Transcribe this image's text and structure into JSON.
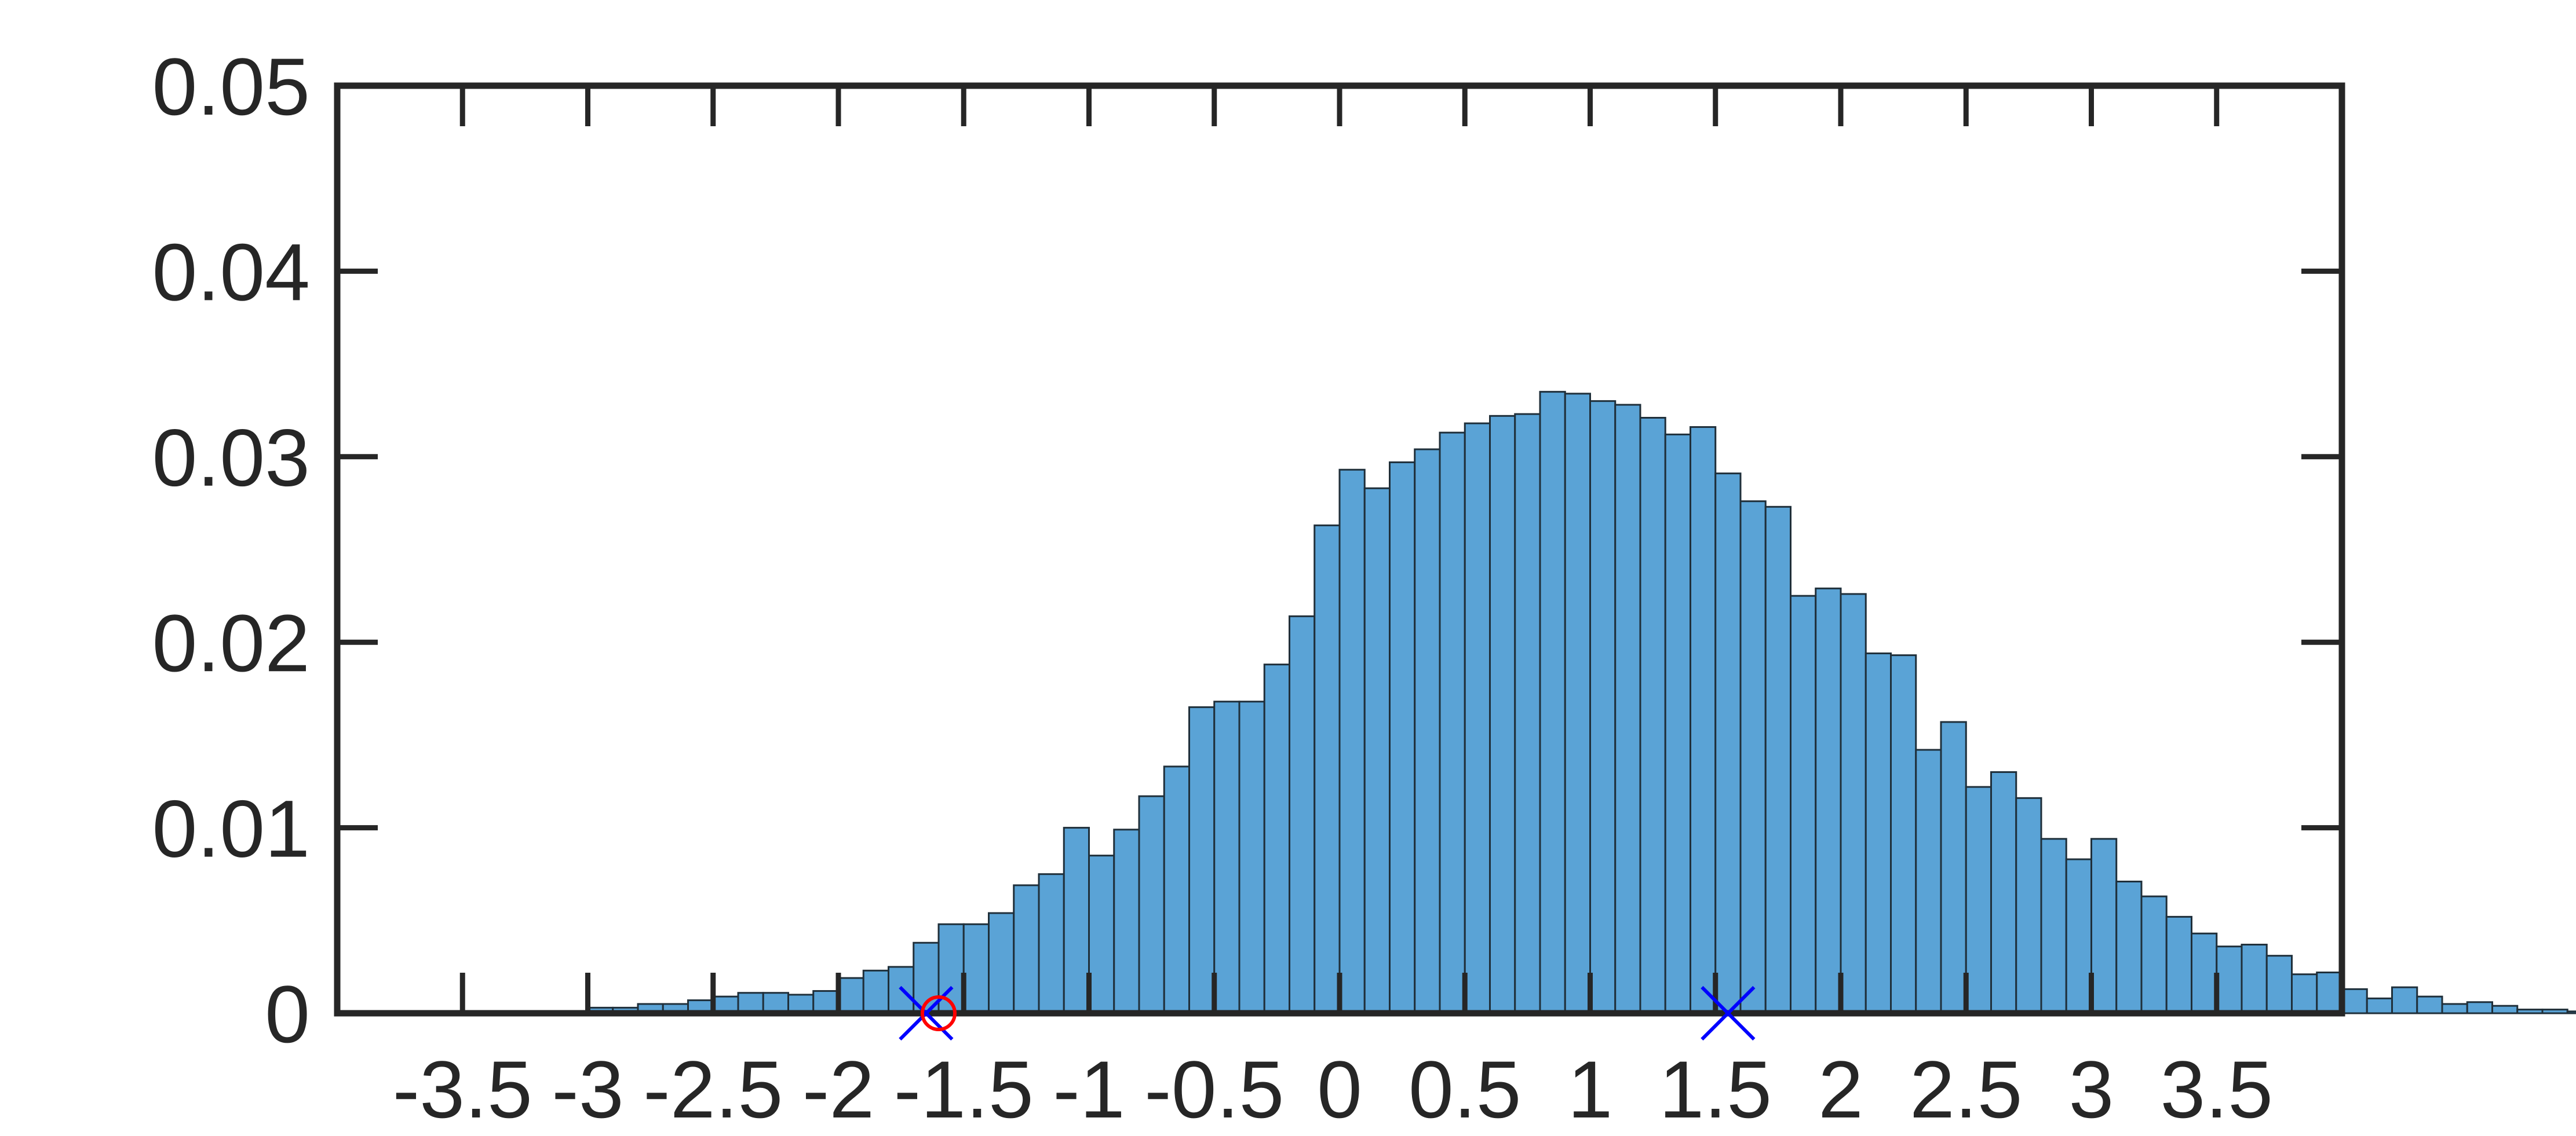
{
  "chart_data": {
    "type": "bar",
    "title": "",
    "xlabel": "",
    "ylabel": "",
    "xlim": [
      -4,
      4
    ],
    "ylim": [
      0,
      0.05
    ],
    "grid": false,
    "bin_start": -3.5,
    "bin_width": 0.1,
    "values": [
      0.0001,
      0.0001,
      0.0001,
      0.0001,
      0.0001,
      0.0003,
      0.0003,
      0.0005,
      0.0005,
      0.0007,
      0.0009,
      0.0011,
      0.0011,
      0.001,
      0.0012,
      0.0019,
      0.0023,
      0.0025,
      0.0038,
      0.0048,
      0.0048,
      0.0054,
      0.0069,
      0.0075,
      0.01,
      0.0085,
      0.0099,
      0.0117,
      0.0133,
      0.0165,
      0.0168,
      0.0168,
      0.0188,
      0.0214,
      0.0263,
      0.0293,
      0.0283,
      0.0297,
      0.0304,
      0.0313,
      0.0318,
      0.0322,
      0.0323,
      0.0335,
      0.0334,
      0.033,
      0.0328,
      0.0321,
      0.0312,
      0.0316,
      0.0291,
      0.0276,
      0.0273,
      0.0225,
      0.0229,
      0.0226,
      0.0194,
      0.0193,
      0.0142,
      0.0157,
      0.0122,
      0.013,
      0.0116,
      0.0094,
      0.0083,
      0.0094,
      0.0071,
      0.0063,
      0.0052,
      0.0043,
      0.0036,
      0.0037,
      0.0031,
      0.0021,
      0.0022,
      0.0013,
      0.0008,
      0.0014,
      0.0009,
      0.0005,
      0.0006,
      0.0004,
      0.0002,
      0.0002,
      0.0001,
      0.0001,
      0.0003,
      0.0001,
      0.0001,
      0.0001
    ],
    "x_ticks": [
      "-3.5",
      "-3",
      "-2.5",
      "-2",
      "-1.5",
      "-1",
      "-0.5",
      "0",
      "0.5",
      "1",
      "1.5",
      "2",
      "2.5",
      "3",
      "3.5"
    ],
    "x_tick_values": [
      -3.5,
      -3,
      -2.5,
      -2,
      -1.5,
      -1,
      -0.5,
      0,
      0.5,
      1,
      1.5,
      2,
      2.5,
      3,
      3.5
    ],
    "y_ticks": [
      "0",
      "0.01",
      "0.02",
      "0.03",
      "0.04",
      "0.05"
    ],
    "y_tick_values": [
      0,
      0.01,
      0.02,
      0.03,
      0.04,
      0.05
    ],
    "markers": [
      {
        "shape": "x",
        "x": -1.65,
        "y": 0,
        "color": "#0000ff"
      },
      {
        "shape": "x",
        "x": 1.55,
        "y": 0,
        "color": "#0000ff"
      },
      {
        "shape": "circle",
        "x": -1.6,
        "y": 0,
        "color": "#ff0000"
      }
    ],
    "colors": {
      "bar_fill": "#5aa3d6",
      "bar_edge": "#1f2f3a",
      "axis": "#262626"
    }
  }
}
